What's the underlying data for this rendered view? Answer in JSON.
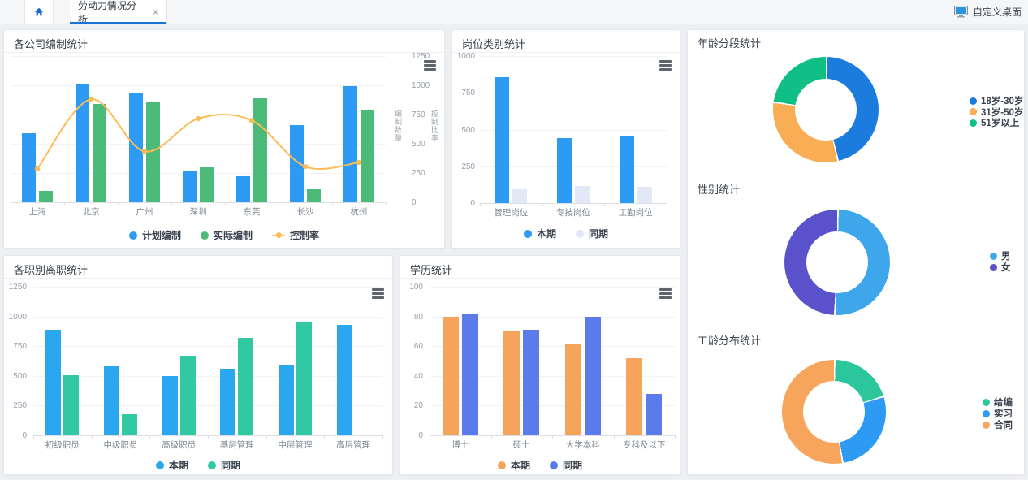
{
  "topbar": {
    "tab_label": "劳动力情况分析",
    "tab_close": "×",
    "customize_label": "自定义桌面"
  },
  "chart_data": [
    {
      "id": "company-establishment",
      "type": "bar",
      "title": "各公司编制统计",
      "categories": [
        "上海",
        "北京",
        "广州",
        "深圳",
        "东莞",
        "长沙",
        "杭州"
      ],
      "series": [
        {
          "name": "计划编制",
          "kind": "bar",
          "color": "#2D9AF3",
          "values": [
            590,
            1005,
            940,
            265,
            220,
            660,
            990
          ]
        },
        {
          "name": "实际编制",
          "kind": "bar",
          "color": "#4CBA78",
          "values": [
            95,
            840,
            855,
            300,
            890,
            110,
            785
          ]
        },
        {
          "name": "控制率",
          "kind": "line",
          "color": "#FBBD57",
          "values": [
            285,
            880,
            435,
            715,
            700,
            305,
            340
          ]
        }
      ],
      "yticks": [
        0,
        250,
        500,
        750,
        1000,
        1250
      ],
      "ylim": [
        0,
        1250
      ],
      "y_axis_side": "right",
      "y_axis_names": [
        "编制数量",
        "控制比率"
      ],
      "grid": true,
      "legend_position": "bottom"
    },
    {
      "id": "position-category",
      "type": "bar",
      "title": "岗位类别统计",
      "categories": [
        "管理岗位",
        "专技岗位",
        "工勤岗位"
      ],
      "series": [
        {
          "name": "本期",
          "kind": "bar",
          "color": "#2D9AF3",
          "values": [
            855,
            440,
            455
          ]
        },
        {
          "name": "同期",
          "kind": "bar",
          "color": "#E3E8F7",
          "values": [
            95,
            115,
            110
          ]
        }
      ],
      "yticks": [
        0,
        250,
        500,
        750,
        1000
      ],
      "ylim": [
        0,
        1000
      ],
      "y_axis_side": "left",
      "grid": true,
      "legend_position": "bottom"
    },
    {
      "id": "rank-resignation",
      "type": "bar",
      "title": "各职别离职统计",
      "categories": [
        "初级职员",
        "中级职员",
        "高级职员",
        "基层管理",
        "中层管理",
        "高层管理"
      ],
      "series": [
        {
          "name": "本期",
          "kind": "bar",
          "color": "#2AA7EF",
          "values": [
            890,
            580,
            500,
            560,
            585,
            930
          ]
        },
        {
          "name": "同期",
          "kind": "bar",
          "color": "#30C9A3",
          "values": [
            505,
            175,
            670,
            820,
            955,
            0
          ]
        }
      ],
      "yticks": [
        0,
        250,
        500,
        750,
        1000,
        1250
      ],
      "ylim": [
        0,
        1250
      ],
      "y_axis_side": "left",
      "grid": true,
      "legend_position": "bottom"
    },
    {
      "id": "education",
      "type": "bar",
      "title": "学历统计",
      "categories": [
        "博士",
        "硕士",
        "大学本科",
        "专科及以下"
      ],
      "series": [
        {
          "name": "本期",
          "kind": "bar",
          "color": "#F6A45C",
          "values": [
            80,
            70,
            61,
            52
          ]
        },
        {
          "name": "同期",
          "kind": "bar",
          "color": "#5C7BEA",
          "values": [
            82,
            71,
            80,
            28
          ]
        }
      ],
      "yticks": [
        0,
        20,
        40,
        60,
        80,
        100
      ],
      "ylim": [
        0,
        100
      ],
      "y_axis_side": "left",
      "grid": true,
      "legend_position": "bottom"
    },
    {
      "id": "age-segment",
      "type": "pie",
      "title": "年龄分段统计",
      "items": [
        {
          "label": "18岁-30岁",
          "color": "#1C7CDE",
          "value": 46
        },
        {
          "label": "31岁-50岁",
          "color": "#F9AD54",
          "value": 31
        },
        {
          "label": "51岁以上",
          "color": "#10BF86",
          "value": 23
        }
      ],
      "legend_position": "right"
    },
    {
      "id": "gender",
      "type": "pie",
      "title": "性别统计",
      "items": [
        {
          "label": "男",
          "color": "#3EA7EB",
          "value": 50.5
        },
        {
          "label": "女",
          "color": "#5952CA",
          "value": 49.5
        }
      ],
      "legend_position": "right"
    },
    {
      "id": "tenure-distribution",
      "type": "pie",
      "title": "工龄分布统计",
      "items": [
        {
          "label": "给编",
          "color": "#2BC69B",
          "value": 20
        },
        {
          "label": "实习",
          "color": "#2D9AF3",
          "value": 27
        },
        {
          "label": "合同",
          "color": "#F7A55C",
          "value": 53
        }
      ],
      "legend_position": "right"
    }
  ]
}
